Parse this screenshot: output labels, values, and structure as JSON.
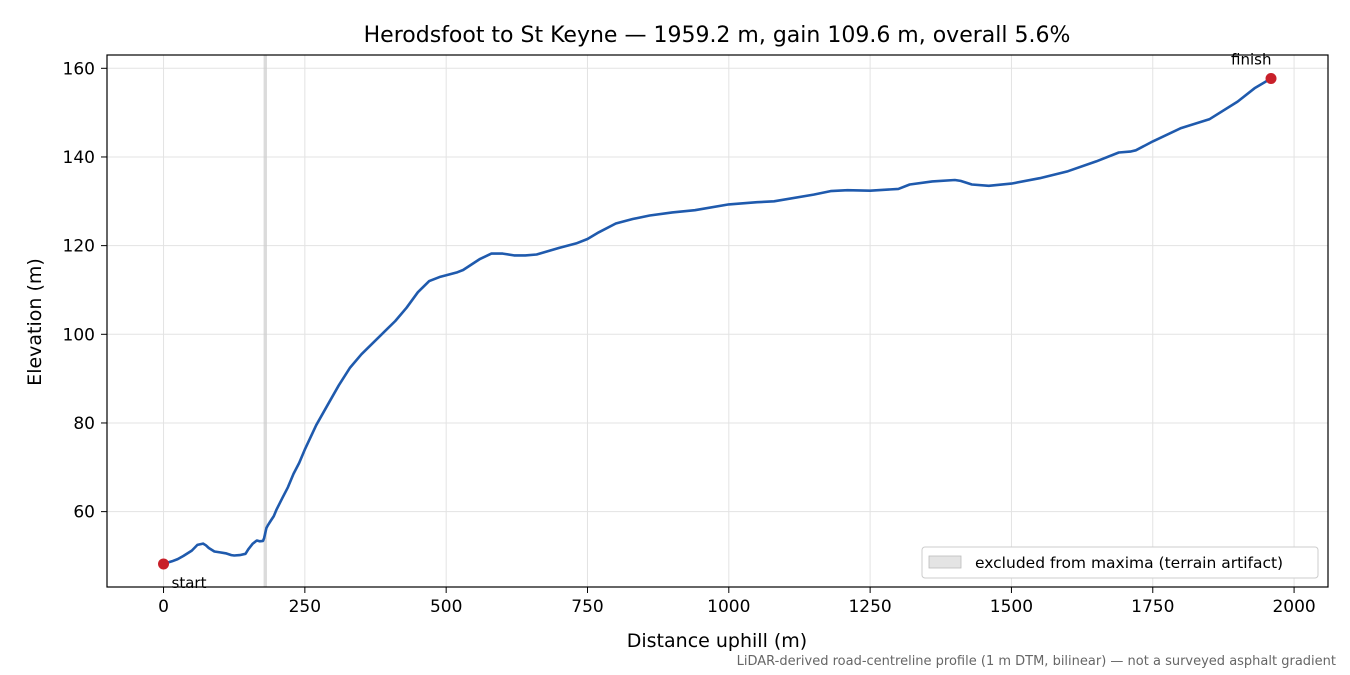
{
  "chart_data": {
    "type": "line",
    "title": "Herodsfoot to St Keyne — 1959.2 m, gain 109.6 m, overall 5.6%",
    "xlabel": "Distance uphill (m)",
    "ylabel": "Elevation (m)",
    "xlim": [
      -100,
      2060
    ],
    "ylim": [
      43,
      163
    ],
    "xticks": [
      0,
      250,
      500,
      750,
      1000,
      1250,
      1500,
      1750,
      2000
    ],
    "yticks": [
      60,
      80,
      100,
      120,
      140,
      160
    ],
    "grid": true,
    "line_color": "#1f5aad",
    "marker_color": "#c8202a",
    "series": [
      {
        "x": [
          0,
          15,
          25,
          35,
          50,
          60,
          70,
          75,
          80,
          90,
          100,
          110,
          120,
          125,
          135,
          145,
          150,
          158,
          165,
          170,
          176,
          178,
          182,
          185,
          190,
          195,
          200,
          210,
          220,
          230,
          240,
          250,
          270,
          290,
          310,
          330,
          350,
          370,
          390,
          410,
          430,
          450,
          470,
          490,
          500,
          520,
          530,
          560,
          580,
          600,
          620,
          640,
          660,
          700,
          730,
          750,
          770,
          800,
          830,
          860,
          900,
          940,
          1000,
          1050,
          1080,
          1150,
          1180,
          1210,
          1250,
          1300,
          1320,
          1360,
          1400,
          1410,
          1430,
          1460,
          1500,
          1550,
          1600,
          1650,
          1690,
          1710,
          1720,
          1750,
          1800,
          1850,
          1900,
          1930,
          1959.2
        ],
        "y": [
          48.2,
          48.8,
          49.3,
          50,
          51.2,
          52.5,
          52.8,
          52.4,
          51.8,
          51,
          50.8,
          50.6,
          50.2,
          50.1,
          50.2,
          50.5,
          51.5,
          52.8,
          53.5,
          53.3,
          53.4,
          54,
          56.3,
          57,
          58,
          59,
          60.5,
          63,
          65.5,
          68.5,
          71,
          74,
          79.5,
          84,
          88.5,
          92.5,
          95.5,
          98,
          100.5,
          103,
          106,
          109.5,
          112,
          113,
          113.3,
          114,
          114.5,
          117,
          118.2,
          118.2,
          117.8,
          117.8,
          118,
          119.5,
          120.5,
          121.5,
          123,
          125,
          126,
          126.8,
          127.5,
          128,
          129.3,
          129.8,
          130,
          131.5,
          132.3,
          132.5,
          132.4,
          132.8,
          133.8,
          134.5,
          134.8,
          134.6,
          133.8,
          133.5,
          134,
          135.2,
          136.8,
          139,
          141,
          141.2,
          141.5,
          143.5,
          146.5,
          148.5,
          152.5,
          155.5,
          157.7
        ]
      }
    ],
    "excluded_span": [
      177,
      183
    ],
    "legend": {
      "position": "lower-right",
      "label": "excluded from maxima (terrain artifact)"
    },
    "annotations": [
      {
        "text": "start",
        "x": 0,
        "y": 48.2
      },
      {
        "text": "finish",
        "x": 1959.2,
        "y": 157.7
      }
    ],
    "footnote": "LiDAR-derived road-centreline profile (1 m DTM, bilinear) — not a surveyed asphalt gradient"
  }
}
